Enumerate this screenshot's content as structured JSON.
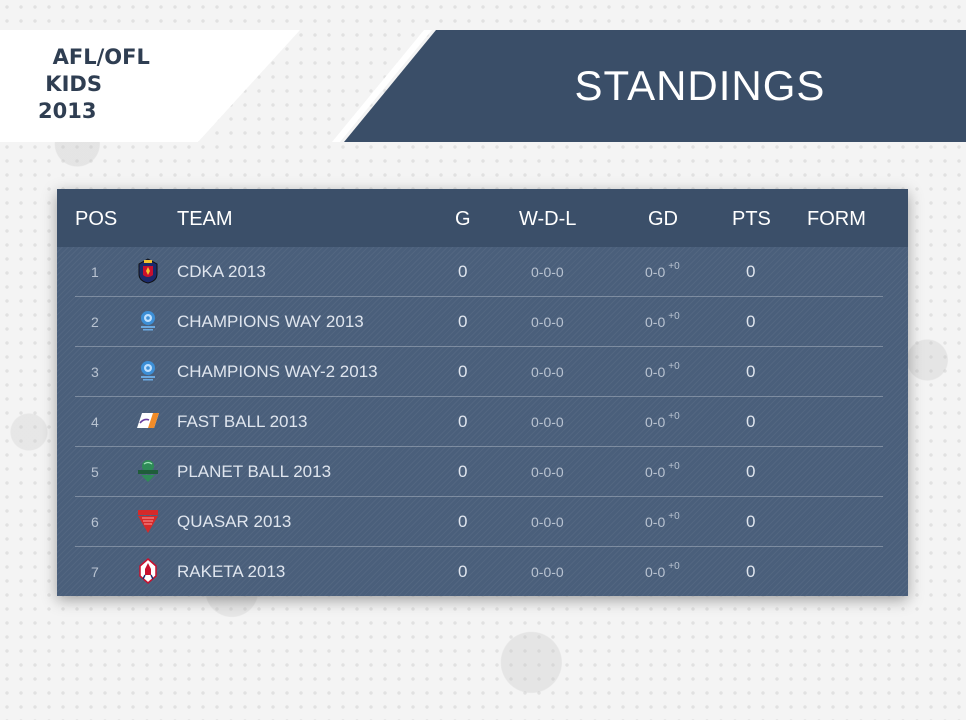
{
  "brand": {
    "title": "  AFL/OFL\n KIDS\n2013"
  },
  "header": {
    "title": "STANDINGS"
  },
  "table": {
    "columns": {
      "pos": "POS",
      "team": "TEAM",
      "g": "G",
      "wdl": "W-D-L",
      "gd": "GD",
      "pts": "PTS",
      "form": "FORM"
    },
    "rows": [
      {
        "pos": "1",
        "team": "CDKA 2013",
        "logo": "cdka-crest-icon",
        "g": "0",
        "wdl": "0-0-0",
        "gd": "0-0",
        "gd_diff": "+0",
        "pts": "0",
        "form": ""
      },
      {
        "pos": "2",
        "team": "CHAMPIONS WAY 2013",
        "logo": "champions-way-crest-icon",
        "g": "0",
        "wdl": "0-0-0",
        "gd": "0-0",
        "gd_diff": "+0",
        "pts": "0",
        "form": ""
      },
      {
        "pos": "3",
        "team": "CHAMPIONS WAY-2 2013",
        "logo": "champions-way-crest-icon",
        "g": "0",
        "wdl": "0-0-0",
        "gd": "0-0",
        "gd_diff": "+0",
        "pts": "0",
        "form": ""
      },
      {
        "pos": "4",
        "team": "FAST BALL 2013",
        "logo": "fast-ball-crest-icon",
        "g": "0",
        "wdl": "0-0-0",
        "gd": "0-0",
        "gd_diff": "+0",
        "pts": "0",
        "form": ""
      },
      {
        "pos": "5",
        "team": "PLANET BALL 2013",
        "logo": "planet-ball-crest-icon",
        "g": "0",
        "wdl": "0-0-0",
        "gd": "0-0",
        "gd_diff": "+0",
        "pts": "0",
        "form": ""
      },
      {
        "pos": "6",
        "team": "QUASAR 2013",
        "logo": "quasar-crest-icon",
        "g": "0",
        "wdl": "0-0-0",
        "gd": "0-0",
        "gd_diff": "+0",
        "pts": "0",
        "form": ""
      },
      {
        "pos": "7",
        "team": "RAKETA 2013",
        "logo": "raketa-crest-icon",
        "g": "0",
        "wdl": "0-0-0",
        "gd": "0-0",
        "gd_diff": "+0",
        "pts": "0",
        "form": ""
      }
    ]
  },
  "colors": {
    "header_bar": "#3a4e68",
    "table_body": "#4a5f7b",
    "table_header": "#3b4f69",
    "brand_text": "#2f3e52"
  }
}
